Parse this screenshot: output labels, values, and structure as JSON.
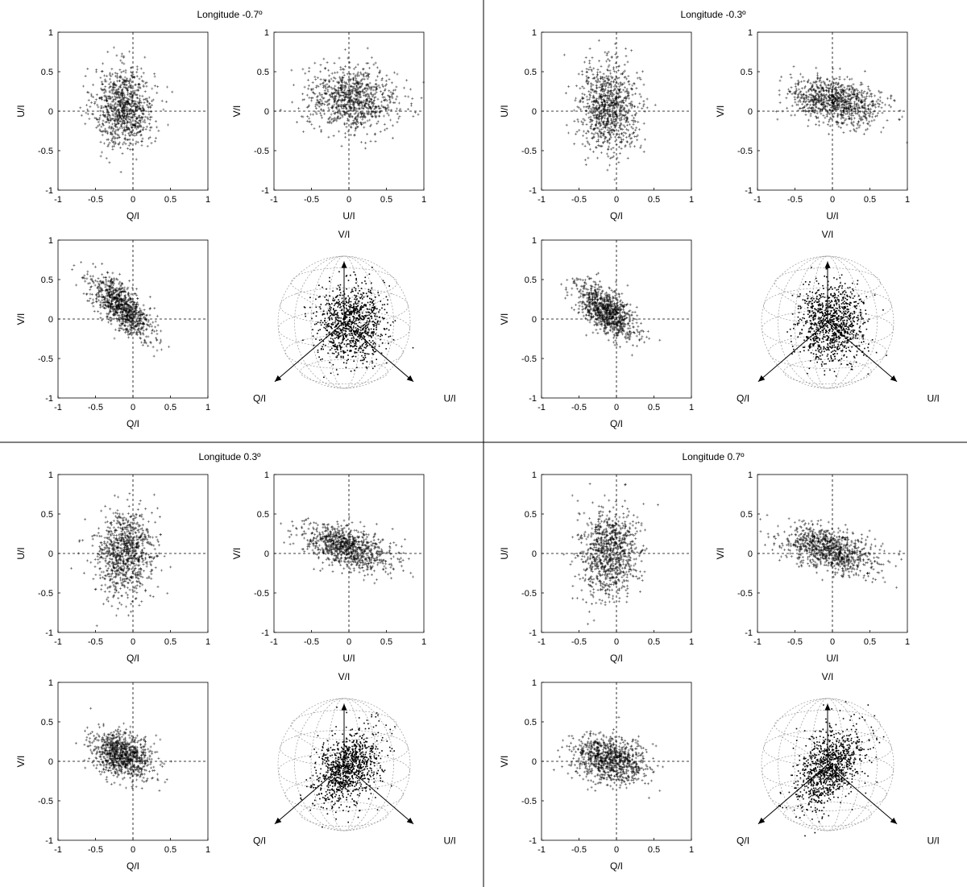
{
  "figure": {
    "background": "#ffffff",
    "line_color": "#000000",
    "point_color": "#000000",
    "sphere_grid_color": "#9a9a9a"
  },
  "chart_data": [
    {
      "title": "Longitude -0.7º",
      "charts": [
        {
          "type": "scatter",
          "xlabel": "Q/I",
          "ylabel": "U/I",
          "xlim": [
            -1,
            1
          ],
          "ylim": [
            -1,
            1
          ],
          "xticks": [
            "-1",
            "-0.5",
            "0",
            "0.5",
            "1"
          ],
          "yticks": [
            "-1",
            "-0.5",
            "0",
            "0.5",
            "1"
          ],
          "cloud": {
            "cx": -0.12,
            "cy": 0.05,
            "sx": 0.2,
            "sy": 0.25,
            "rho": 0.0,
            "n": 900
          }
        },
        {
          "type": "scatter",
          "xlabel": "U/I",
          "ylabel": "V/I",
          "xlim": [
            -1,
            1
          ],
          "ylim": [
            -1,
            1
          ],
          "xticks": [
            "-1",
            "-0.5",
            "0",
            "0.5",
            "1"
          ],
          "yticks": [
            "-1",
            "-0.5",
            "0",
            "0.5",
            "1"
          ],
          "cloud": {
            "cx": 0.05,
            "cy": 0.15,
            "sx": 0.3,
            "sy": 0.2,
            "rho": -0.1,
            "n": 900
          }
        },
        {
          "type": "scatter",
          "xlabel": "Q/I",
          "ylabel": "V/I",
          "xlim": [
            -1,
            1
          ],
          "ylim": [
            -1,
            1
          ],
          "xticks": [
            "-1",
            "-0.5",
            "0",
            "0.5",
            "1"
          ],
          "yticks": [
            "-1",
            "-0.5",
            "0",
            "0.5",
            "1"
          ],
          "cloud": {
            "cx": -0.15,
            "cy": 0.15,
            "sx": 0.2,
            "sy": 0.2,
            "rho": -0.7,
            "n": 900
          }
        },
        {
          "type": "poincare-sphere",
          "axes": [
            "V/I",
            "Q/I",
            "U/I"
          ],
          "cloud": {
            "cx": 0.1,
            "cy": 0.0,
            "sx": 0.25,
            "sy": 0.28,
            "rho": 0.0,
            "n": 1000
          }
        }
      ]
    },
    {
      "title": "Longitude -0.3º",
      "charts": [
        {
          "type": "scatter",
          "xlabel": "Q/I",
          "ylabel": "U/I",
          "xlim": [
            -1,
            1
          ],
          "ylim": [
            -1,
            1
          ],
          "xticks": [
            "-1",
            "-0.5",
            "0",
            "0.5",
            "1"
          ],
          "yticks": [
            "-1",
            "-0.5",
            "0",
            "0.5",
            "1"
          ],
          "cloud": {
            "cx": -0.1,
            "cy": 0.05,
            "sx": 0.2,
            "sy": 0.27,
            "rho": 0.0,
            "n": 900
          }
        },
        {
          "type": "scatter",
          "xlabel": "U/I",
          "ylabel": "V/I",
          "xlim": [
            -1,
            1
          ],
          "ylim": [
            -1,
            1
          ],
          "xticks": [
            "-1",
            "-0.5",
            "0",
            "0.5",
            "1"
          ],
          "yticks": [
            "-1",
            "-0.5",
            "0",
            "0.5",
            "1"
          ],
          "cloud": {
            "cx": 0.05,
            "cy": 0.12,
            "sx": 0.3,
            "sy": 0.15,
            "rho": -0.3,
            "n": 900
          }
        },
        {
          "type": "scatter",
          "xlabel": "Q/I",
          "ylabel": "V/I",
          "xlim": [
            -1,
            1
          ],
          "ylim": [
            -1,
            1
          ],
          "xticks": [
            "-1",
            "-0.5",
            "0",
            "0.5",
            "1"
          ],
          "yticks": [
            "-1",
            "-0.5",
            "0",
            "0.5",
            "1"
          ],
          "cloud": {
            "cx": -0.15,
            "cy": 0.1,
            "sx": 0.2,
            "sy": 0.17,
            "rho": -0.6,
            "n": 900
          }
        },
        {
          "type": "poincare-sphere",
          "axes": [
            "V/I",
            "Q/I",
            "U/I"
          ],
          "cloud": {
            "cx": 0.05,
            "cy": 0.0,
            "sx": 0.25,
            "sy": 0.28,
            "rho": 0.0,
            "n": 1000
          }
        }
      ]
    },
    {
      "title": "Longitude 0.3º",
      "charts": [
        {
          "type": "scatter",
          "xlabel": "Q/I",
          "ylabel": "U/I",
          "xlim": [
            -1,
            1
          ],
          "ylim": [
            -1,
            1
          ],
          "xticks": [
            "-1",
            "-0.5",
            "0",
            "0.5",
            "1"
          ],
          "yticks": [
            "-1",
            "-0.5",
            "0",
            "0.5",
            "1"
          ],
          "cloud": {
            "cx": -0.12,
            "cy": 0.0,
            "sx": 0.2,
            "sy": 0.27,
            "rho": 0.1,
            "n": 900
          }
        },
        {
          "type": "scatter",
          "xlabel": "U/I",
          "ylabel": "V/I",
          "xlim": [
            -1,
            1
          ],
          "ylim": [
            -1,
            1
          ],
          "xticks": [
            "-1",
            "-0.5",
            "0",
            "0.5",
            "1"
          ],
          "yticks": [
            "-1",
            "-0.5",
            "0",
            "0.5",
            "1"
          ],
          "cloud": {
            "cx": -0.05,
            "cy": 0.08,
            "sx": 0.3,
            "sy": 0.15,
            "rho": -0.5,
            "n": 900
          }
        },
        {
          "type": "scatter",
          "xlabel": "Q/I",
          "ylabel": "V/I",
          "xlim": [
            -1,
            1
          ],
          "ylim": [
            -1,
            1
          ],
          "xticks": [
            "-1",
            "-0.5",
            "0",
            "0.5",
            "1"
          ],
          "yticks": [
            "-1",
            "-0.5",
            "0",
            "0.5",
            "1"
          ],
          "cloud": {
            "cx": -0.15,
            "cy": 0.08,
            "sx": 0.2,
            "sy": 0.15,
            "rho": -0.3,
            "n": 900
          }
        },
        {
          "type": "poincare-sphere",
          "axes": [
            "V/I",
            "Q/I",
            "U/I"
          ],
          "cloud": {
            "cx": 0.05,
            "cy": -0.05,
            "sx": 0.25,
            "sy": 0.28,
            "rho": 0.4,
            "n": 1000
          }
        }
      ]
    },
    {
      "title": "Longitude 0.7º",
      "charts": [
        {
          "type": "scatter",
          "xlabel": "Q/I",
          "ylabel": "U/I",
          "xlim": [
            -1,
            1
          ],
          "ylim": [
            -1,
            1
          ],
          "xticks": [
            "-1",
            "-0.5",
            "0",
            "0.5",
            "1"
          ],
          "yticks": [
            "-1",
            "-0.5",
            "0",
            "0.5",
            "1"
          ],
          "cloud": {
            "cx": -0.1,
            "cy": 0.0,
            "sx": 0.2,
            "sy": 0.27,
            "rho": 0.1,
            "n": 900
          }
        },
        {
          "type": "scatter",
          "xlabel": "U/I",
          "ylabel": "V/I",
          "xlim": [
            -1,
            1
          ],
          "ylim": [
            -1,
            1
          ],
          "xticks": [
            "-1",
            "-0.5",
            "0",
            "0.5",
            "1"
          ],
          "yticks": [
            "-1",
            "-0.5",
            "0",
            "0.5",
            "1"
          ],
          "cloud": {
            "cx": -0.05,
            "cy": 0.05,
            "sx": 0.3,
            "sy": 0.15,
            "rho": -0.5,
            "n": 900
          }
        },
        {
          "type": "scatter",
          "xlabel": "Q/I",
          "ylabel": "V/I",
          "xlim": [
            -1,
            1
          ],
          "ylim": [
            -1,
            1
          ],
          "xticks": [
            "-1",
            "-0.5",
            "0",
            "0.5",
            "1"
          ],
          "yticks": [
            "-1",
            "-0.5",
            "0",
            "0.5",
            "1"
          ],
          "cloud": {
            "cx": -0.1,
            "cy": 0.02,
            "sx": 0.25,
            "sy": 0.15,
            "rho": -0.2,
            "n": 900
          }
        },
        {
          "type": "poincare-sphere",
          "axes": [
            "V/I",
            "Q/I",
            "U/I"
          ],
          "cloud": {
            "cx": 0.0,
            "cy": -0.05,
            "sx": 0.25,
            "sy": 0.3,
            "rho": 0.4,
            "n": 1000
          }
        }
      ]
    }
  ]
}
